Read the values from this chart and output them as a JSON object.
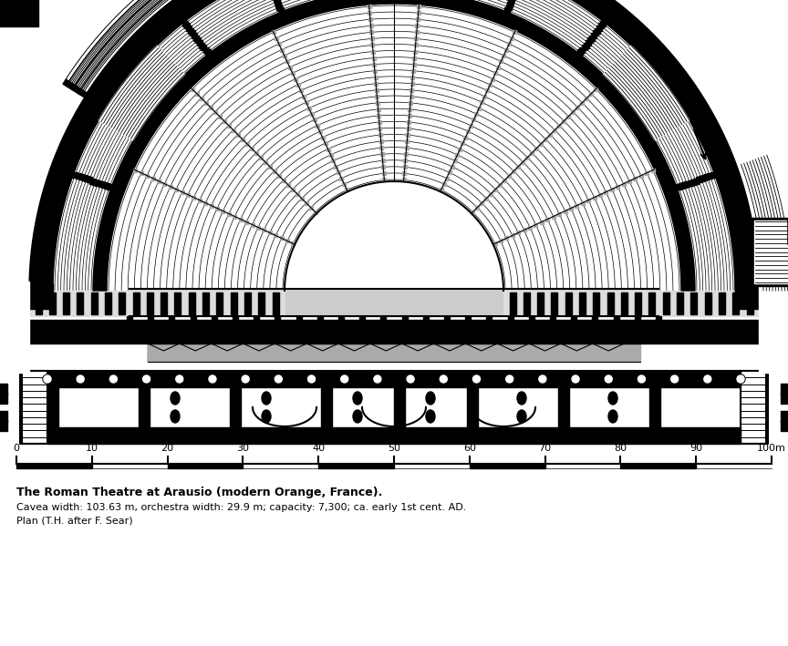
{
  "title_bold": "The Roman Theatre at Arausio (modern Orange, France).",
  "title_line2": "Cavea width: 103.63 m, orchestra width: 29.9 m; capacity: 7,300; ca. early 1st cent. AD.",
  "title_line3": "Plan (T.H. after F. Sear)",
  "scale_labels": [
    "0",
    "10",
    "20",
    "30",
    "40",
    "50",
    "60",
    "70",
    "80",
    "90",
    "100m"
  ],
  "bg_color": "#ffffff",
  "black": "#000000",
  "gray": "#999999",
  "lgray": "#cccccc"
}
